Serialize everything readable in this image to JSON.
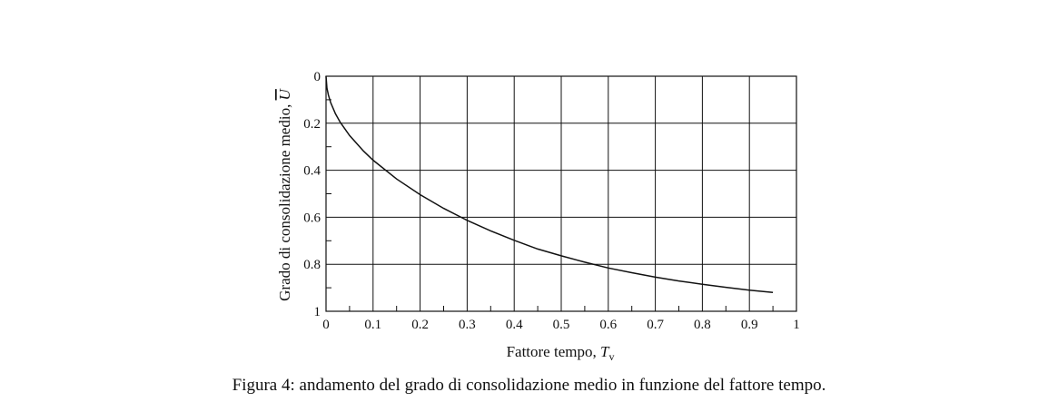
{
  "chart_data": {
    "type": "line",
    "xlabel": {
      "text": "Fattore tempo, ",
      "var": "T",
      "sub": "v"
    },
    "ylabel": {
      "text": "Grado di consolidazione medio, ",
      "var": "U"
    },
    "xlim": [
      0,
      1
    ],
    "ylim": [
      0,
      1
    ],
    "y_inverted": true,
    "grid": true,
    "x_ticks": [
      {
        "value": 0,
        "label": "0"
      },
      {
        "value": 0.1,
        "label": "0.1"
      },
      {
        "value": 0.2,
        "label": "0.2"
      },
      {
        "value": 0.3,
        "label": "0.3"
      },
      {
        "value": 0.4,
        "label": "0.4"
      },
      {
        "value": 0.5,
        "label": "0.5"
      },
      {
        "value": 0.6,
        "label": "0.6"
      },
      {
        "value": 0.7,
        "label": "0.7"
      },
      {
        "value": 0.8,
        "label": "0.8"
      },
      {
        "value": 0.9,
        "label": "0.9"
      },
      {
        "value": 1,
        "label": "1"
      }
    ],
    "y_ticks": [
      {
        "value": 0,
        "label": "0"
      },
      {
        "value": 0.2,
        "label": "0.2"
      },
      {
        "value": 0.4,
        "label": "0.4"
      },
      {
        "value": 0.6,
        "label": "0.6"
      },
      {
        "value": 0.8,
        "label": "0.8"
      },
      {
        "value": 1,
        "label": "1"
      }
    ],
    "series": [
      {
        "x": [
          0,
          0.002,
          0.005,
          0.01,
          0.02,
          0.03,
          0.05,
          0.08,
          0.1,
          0.15,
          0.2,
          0.25,
          0.3,
          0.35,
          0.4,
          0.45,
          0.5,
          0.55,
          0.6,
          0.65,
          0.7,
          0.75,
          0.8,
          0.85,
          0.9,
          0.95
        ],
        "y": [
          0,
          0.05,
          0.08,
          0.113,
          0.16,
          0.195,
          0.252,
          0.319,
          0.357,
          0.437,
          0.504,
          0.562,
          0.613,
          0.658,
          0.698,
          0.735,
          0.764,
          0.791,
          0.816,
          0.836,
          0.855,
          0.871,
          0.885,
          0.898,
          0.91,
          0.92
        ]
      }
    ]
  },
  "caption": "Figura 4: andamento del grado di consolidazione medio in funzione del fattore tempo."
}
